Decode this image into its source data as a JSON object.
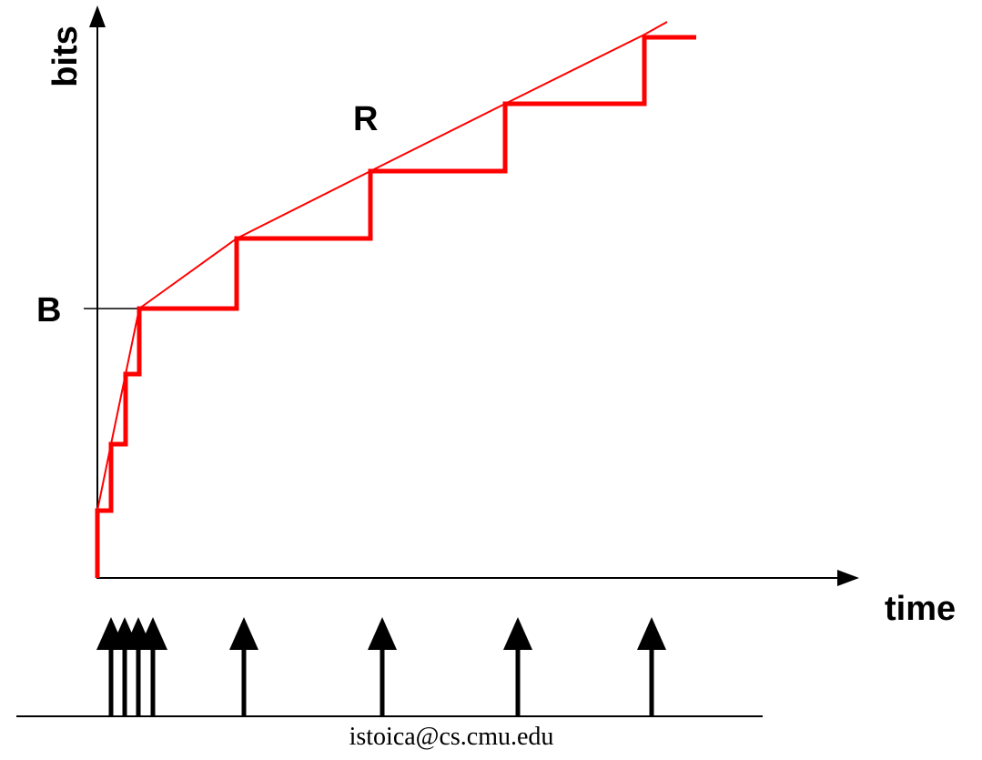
{
  "labels": {
    "y_axis": "bits",
    "x_axis": "time",
    "bucket_depth": "B",
    "token_rate": "R",
    "footer_email": "istoica@cs.cmu.edu"
  },
  "colors": {
    "curve": "#ff0000",
    "axes": "#000000",
    "background": "#ffffff"
  }
}
